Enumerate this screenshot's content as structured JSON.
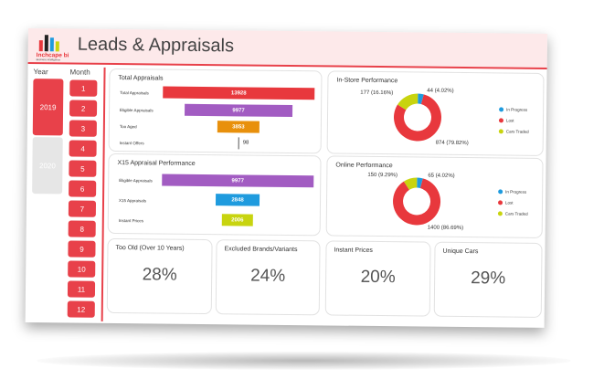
{
  "header": {
    "title": "Leads & Appraisals",
    "logo_text": "Inchcape bi",
    "logo_tagline": "Business Intelligence"
  },
  "filters": {
    "year_label": "Year",
    "month_label": "Month",
    "years": [
      {
        "label": "2019",
        "selected": true
      },
      {
        "label": "2020",
        "selected": false
      }
    ],
    "months": [
      "1",
      "2",
      "3",
      "4",
      "5",
      "6",
      "7",
      "8",
      "9",
      "10",
      "11",
      "12"
    ]
  },
  "total_appraisals": {
    "title": "Total Appraisals",
    "rows": [
      {
        "label": "Total Appraisals",
        "value": "13928",
        "color": "#e8383d"
      },
      {
        "label": "Eligible Appraisals",
        "value": "9977",
        "color": "#a25cc2"
      },
      {
        "label": "Too Aged",
        "value": "3853",
        "color": "#e8900c"
      },
      {
        "label": "Instant Offers",
        "value": "98",
        "color": "#555555"
      }
    ]
  },
  "x15_performance": {
    "title": "X15 Appraisal Performance",
    "rows": [
      {
        "label": "Eligible Appraisals",
        "value": "9977",
        "color": "#a25cc2"
      },
      {
        "label": "X15 Appraisals",
        "value": "2848",
        "color": "#1f9bde"
      },
      {
        "label": "Instant Prices",
        "value": "2006",
        "color": "#c8d40f"
      }
    ]
  },
  "instore": {
    "title": "In-Store Performance",
    "labels": {
      "in_progress": "44 (4.02%)",
      "cars_traded": "177 (16.16%)",
      "lost": "874 (79.82%)"
    },
    "legend": [
      "In Progress",
      "Lost",
      "Cars Traded"
    ]
  },
  "online": {
    "title": "Online Performance",
    "labels": {
      "in_progress": "65 (4.02%)",
      "cars_traded": "150 (9.29%)",
      "lost": "1400 (86.69%)"
    },
    "legend": [
      "In Progress",
      "Lost",
      "Cars Traded"
    ]
  },
  "colors": {
    "accent": "#e8414a",
    "in_progress": "#1f9bde",
    "lost": "#e8383d",
    "cars_traded": "#c8d40f"
  },
  "chart_data": [
    {
      "type": "pie",
      "title": "In-Store Performance",
      "categories": [
        "In Progress",
        "Lost",
        "Cars Traded"
      ],
      "values": [
        44,
        874,
        177
      ],
      "percent": [
        4.02,
        79.82,
        16.16
      ]
    },
    {
      "type": "pie",
      "title": "Online Performance",
      "categories": [
        "In Progress",
        "Lost",
        "Cars Traded"
      ],
      "values": [
        65,
        1400,
        150
      ],
      "percent": [
        4.02,
        86.69,
        9.29
      ]
    }
  ],
  "kpis": [
    {
      "title": "Too Old (Over 10 Years)",
      "value": "28%"
    },
    {
      "title": "Excluded Brands/Variants",
      "value": "24%"
    },
    {
      "title": "Instant Prices",
      "value": "20%"
    },
    {
      "title": "Unique Cars",
      "value": "29%"
    }
  ]
}
